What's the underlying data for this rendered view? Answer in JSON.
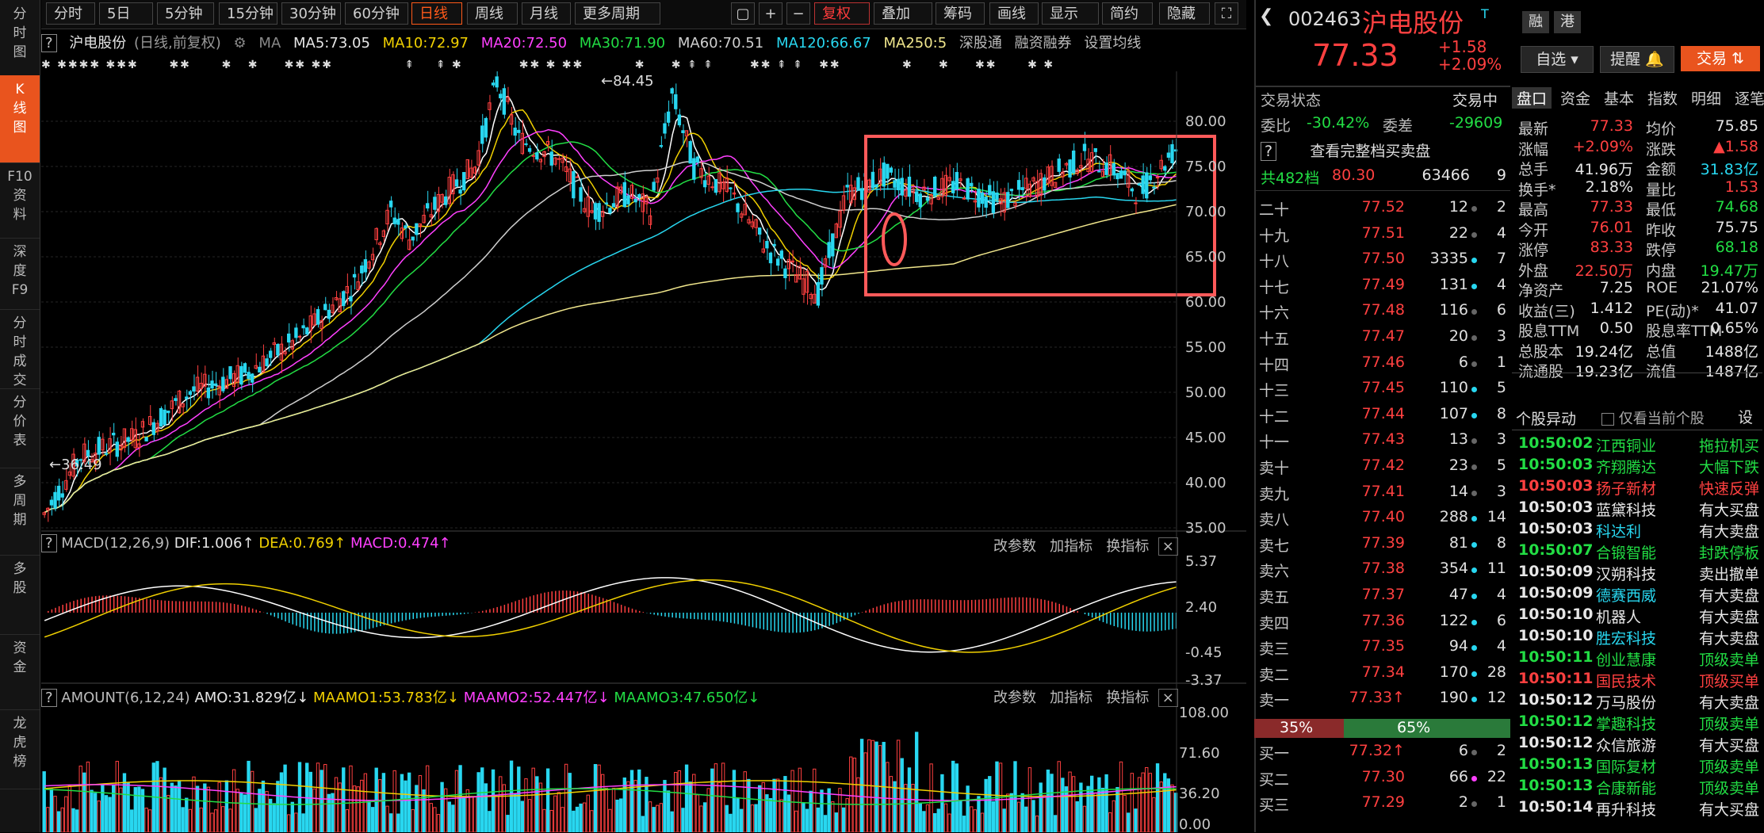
{
  "leftnav": [
    {
      "label": "分\n时\n图"
    },
    {
      "label": "K\n线\n图"
    },
    {
      "label": "F10\n资\n料"
    },
    {
      "label": "深\n度\nF9"
    },
    {
      "label": "分\n时\n成\n交"
    },
    {
      "label": "分\n价\n表"
    },
    {
      "label": "多\n周\n期"
    },
    {
      "label": "多\n股"
    },
    {
      "label": "资\n金"
    },
    {
      "label": "龙\n虎\n榜"
    }
  ],
  "toolbar": {
    "periods": [
      "分时",
      "5日",
      "5分钟",
      "15分钟",
      "30分钟",
      "60分钟",
      "日线",
      "周线",
      "月线",
      "更多周期"
    ],
    "tools": [
      "复权",
      "叠加",
      "筹码",
      "画线",
      "显示",
      "简约",
      "隐藏"
    ]
  },
  "ma_bar": {
    "name": "沪电股份",
    "mode": "(日线,前复权)",
    "ma": "MA",
    "ma5": "MA5:73.05",
    "ma10": "MA10:72.97",
    "ma20": "MA20:72.50",
    "ma30": "MA30:71.90",
    "ma60": "MA60:70.51",
    "ma120": "MA120:66.67",
    "ma250": "MA250:5",
    "links": [
      "深股通",
      "融资融券",
      "设置均线"
    ]
  },
  "main_chart": {
    "y_ticks": [
      "80.00",
      "75.00",
      "70.00",
      "65.00",
      "60.00",
      "55.00",
      "50.00",
      "45.00",
      "40.00",
      "35.00"
    ],
    "high_label": "84.45",
    "low_label": "36.49"
  },
  "macd": {
    "title": "MACD(12,26,9)",
    "dif": "DIF:1.006",
    "dea": "DEA:0.769",
    "macd": "MACD:0.474",
    "y_ticks": [
      "5.37",
      "2.40",
      "-0.45",
      "-3.37"
    ],
    "btns": [
      "改参数",
      "加指标",
      "换指标"
    ]
  },
  "amount": {
    "title": "AMOUNT(6,12,24)",
    "amo": "AMO:31.829亿",
    "m1": "MAAMO1:53.783亿",
    "m2": "MAAMO2:52.447亿",
    "m3": "MAAMO3:47.650亿",
    "y_ticks": [
      "108.00",
      "71.60",
      "36.20",
      "0.00"
    ],
    "btns": [
      "改参数",
      "加指标",
      "换指标"
    ]
  },
  "quote_header": {
    "code": "002463",
    "name": "沪电股份",
    "badges": [
      "融",
      "港"
    ],
    "price": "77.33",
    "change": "+1.58",
    "pct": "+2.09%",
    "btn_watch": "自选",
    "btn_alert": "提醒",
    "btn_trade": "交易"
  },
  "orderbook_head": {
    "status_label": "交易状态",
    "status": "交易中",
    "wb_label": "委比",
    "wb": "-30.42%",
    "wc_label": "委差",
    "wc": "-29609",
    "full_book": "查看完整档买卖盘",
    "total_label": "共482档",
    "total_px": "80.30",
    "total_vol": "63466",
    "total_cnt": "9"
  },
  "asks": [
    {
      "lvl": "二十",
      "px": "77.52",
      "vol": "12",
      "cnt": "2",
      "dot": "#666"
    },
    {
      "lvl": "十九",
      "px": "77.51",
      "vol": "22",
      "cnt": "4",
      "dot": "#666"
    },
    {
      "lvl": "十八",
      "px": "77.50",
      "vol": "3335",
      "cnt": "7",
      "dot": "#28d7f0"
    },
    {
      "lvl": "十七",
      "px": "77.49",
      "vol": "131",
      "cnt": "4",
      "dot": "#28d7f0"
    },
    {
      "lvl": "十六",
      "px": "77.48",
      "vol": "116",
      "cnt": "6",
      "dot": "#666"
    },
    {
      "lvl": "十五",
      "px": "77.47",
      "vol": "20",
      "cnt": "3",
      "dot": "#666"
    },
    {
      "lvl": "十四",
      "px": "77.46",
      "vol": "6",
      "cnt": "1",
      "dot": "#666"
    },
    {
      "lvl": "十三",
      "px": "77.45",
      "vol": "110",
      "cnt": "5",
      "dot": "#28d7f0"
    },
    {
      "lvl": "十二",
      "px": "77.44",
      "vol": "107",
      "cnt": "8",
      "dot": "#28d7f0"
    },
    {
      "lvl": "十一",
      "px": "77.43",
      "vol": "13",
      "cnt": "3",
      "dot": "#666"
    },
    {
      "lvl": "卖十",
      "px": "77.42",
      "vol": "23",
      "cnt": "5",
      "dot": "#666"
    },
    {
      "lvl": "卖九",
      "px": "77.41",
      "vol": "14",
      "cnt": "3",
      "dot": "#666"
    },
    {
      "lvl": "卖八",
      "px": "77.40",
      "vol": "288",
      "cnt": "14",
      "dot": "#28d7f0"
    },
    {
      "lvl": "卖七",
      "px": "77.39",
      "vol": "81",
      "cnt": "8",
      "dot": "#28d7f0"
    },
    {
      "lvl": "卖六",
      "px": "77.38",
      "vol": "354",
      "cnt": "11",
      "dot": "#28d7f0"
    },
    {
      "lvl": "卖五",
      "px": "77.37",
      "vol": "47",
      "cnt": "4",
      "dot": "#28d7f0"
    },
    {
      "lvl": "卖四",
      "px": "77.36",
      "vol": "122",
      "cnt": "6",
      "dot": "#28d7f0"
    },
    {
      "lvl": "卖三",
      "px": "77.35",
      "vol": "94",
      "cnt": "4",
      "dot": "#28d7f0"
    },
    {
      "lvl": "卖二",
      "px": "77.34",
      "vol": "170",
      "cnt": "28",
      "dot": "#28d7f0"
    },
    {
      "lvl": "卖一",
      "px": "77.33↑",
      "vol": "190",
      "cnt": "12",
      "dot": "#28d7f0"
    }
  ],
  "ratio": {
    "sell": "35%",
    "buy": "65%",
    "sell_frac": 0.35
  },
  "bids": [
    {
      "lvl": "买一",
      "px": "77.32↑",
      "vol": "6",
      "cnt": "2",
      "dot": "#666"
    },
    {
      "lvl": "买二",
      "px": "77.30",
      "vol": "66",
      "cnt": "22",
      "dot": "#ff40ff"
    },
    {
      "lvl": "买三",
      "px": "77.29",
      "vol": "2",
      "cnt": "1",
      "dot": "#666"
    }
  ],
  "tabs": [
    "盘口",
    "资金",
    "基本",
    "指数",
    "明细",
    "逐笔"
  ],
  "quote": [
    {
      "l": "最新",
      "v": "77.33",
      "vc": "red",
      "l2": "均价",
      "v2": "75.85",
      "v2c": "white"
    },
    {
      "l": "涨幅",
      "v": "+2.09%",
      "vc": "red",
      "l2": "涨跌",
      "v2": "▲1.58",
      "v2c": "red"
    },
    {
      "l": "总手",
      "v": "41.96万",
      "vc": "white",
      "l2": "金额",
      "v2": "31.83亿",
      "v2c": "cyan"
    },
    {
      "l": "换手*",
      "v": "2.18%",
      "vc": "white",
      "l2": "量比",
      "v2": "1.53",
      "v2c": "red"
    },
    {
      "l": "最高",
      "v": "77.33",
      "vc": "red",
      "l2": "最低",
      "v2": "74.68",
      "v2c": "green"
    },
    {
      "l": "今开",
      "v": "76.01",
      "vc": "red",
      "l2": "昨收",
      "v2": "75.75",
      "v2c": "white"
    },
    {
      "l": "涨停",
      "v": "83.33",
      "vc": "red",
      "l2": "跌停",
      "v2": "68.18",
      "v2c": "green"
    },
    {
      "l": "外盘",
      "v": "22.50万",
      "vc": "red",
      "l2": "内盘",
      "v2": "19.47万",
      "v2c": "green"
    },
    {
      "l": "净资产",
      "v": "7.25",
      "vc": "white",
      "l2": "ROE",
      "v2": "21.07%",
      "v2c": "white"
    },
    {
      "l": "收益(三)",
      "v": "1.412",
      "vc": "white",
      "l2": "PE(动)*",
      "v2": "41.07",
      "v2c": "white"
    },
    {
      "l": "股息TTM",
      "v": "0.50",
      "vc": "white",
      "l2": "股息率TTM",
      "v2": "0.65%",
      "v2c": "white"
    },
    {
      "l": "总股本",
      "v": "19.24亿",
      "vc": "white",
      "l2": "总值",
      "v2": "1488亿",
      "v2c": "white"
    },
    {
      "l": "流通股",
      "v": "19.23亿",
      "vc": "white",
      "l2": "流值",
      "v2": "1487亿",
      "v2c": "white"
    }
  ],
  "movers_head": {
    "title": "个股异动",
    "filter": "仅看当前个股",
    "settings": "设"
  },
  "movers": [
    {
      "t": "10:50:02",
      "tc": "green",
      "n": "江西铜业",
      "nc": "green",
      "e": "拖拉机买",
      "ec": "green"
    },
    {
      "t": "10:50:03",
      "tc": "green",
      "n": "齐翔腾达",
      "nc": "green",
      "e": "大幅下跌",
      "ec": "green"
    },
    {
      "t": "10:50:03",
      "tc": "red",
      "n": "扬子新材",
      "nc": "red",
      "e": "快速反弹",
      "ec": "red"
    },
    {
      "t": "10:50:03",
      "tc": "white",
      "n": "蓝黛科技",
      "nc": "white",
      "e": "有大买盘",
      "ec": "white"
    },
    {
      "t": "10:50:03",
      "tc": "white",
      "n": "科达利",
      "nc": "cyan",
      "e": "有大卖盘",
      "ec": "white"
    },
    {
      "t": "10:50:07",
      "tc": "green",
      "n": "合锻智能",
      "nc": "green",
      "e": "封跌停板",
      "ec": "green"
    },
    {
      "t": "10:50:09",
      "tc": "white",
      "n": "汉朔科技",
      "nc": "white",
      "e": "卖出撤单",
      "ec": "white"
    },
    {
      "t": "10:50:09",
      "tc": "white",
      "n": "德赛西威",
      "nc": "cyan",
      "e": "有大卖盘",
      "ec": "white"
    },
    {
      "t": "10:50:10",
      "tc": "white",
      "n": "机器人",
      "nc": "white",
      "e": "有大卖盘",
      "ec": "white"
    },
    {
      "t": "10:50:10",
      "tc": "white",
      "n": "胜宏科技",
      "nc": "cyan",
      "e": "有大卖盘",
      "ec": "white"
    },
    {
      "t": "10:50:11",
      "tc": "green",
      "n": "创业慧康",
      "nc": "green",
      "e": "顶级卖单",
      "ec": "green"
    },
    {
      "t": "10:50:11",
      "tc": "red",
      "n": "国民技术",
      "nc": "red",
      "e": "顶级买单",
      "ec": "red"
    },
    {
      "t": "10:50:12",
      "tc": "white",
      "n": "万马股份",
      "nc": "white",
      "e": "有大卖盘",
      "ec": "white"
    },
    {
      "t": "10:50:12",
      "tc": "green",
      "n": "掌趣科技",
      "nc": "green",
      "e": "顶级卖单",
      "ec": "green"
    },
    {
      "t": "10:50:12",
      "tc": "white",
      "n": "众信旅游",
      "nc": "white",
      "e": "有大买盘",
      "ec": "white"
    },
    {
      "t": "10:50:13",
      "tc": "green",
      "n": "国际复材",
      "nc": "green",
      "e": "顶级卖单",
      "ec": "green"
    },
    {
      "t": "10:50:13",
      "tc": "green",
      "n": "合康新能",
      "nc": "green",
      "e": "顶级卖单",
      "ec": "green"
    },
    {
      "t": "10:50:14",
      "tc": "white",
      "n": "再升科技",
      "nc": "white",
      "e": "有大买盘",
      "ec": "white"
    }
  ]
}
